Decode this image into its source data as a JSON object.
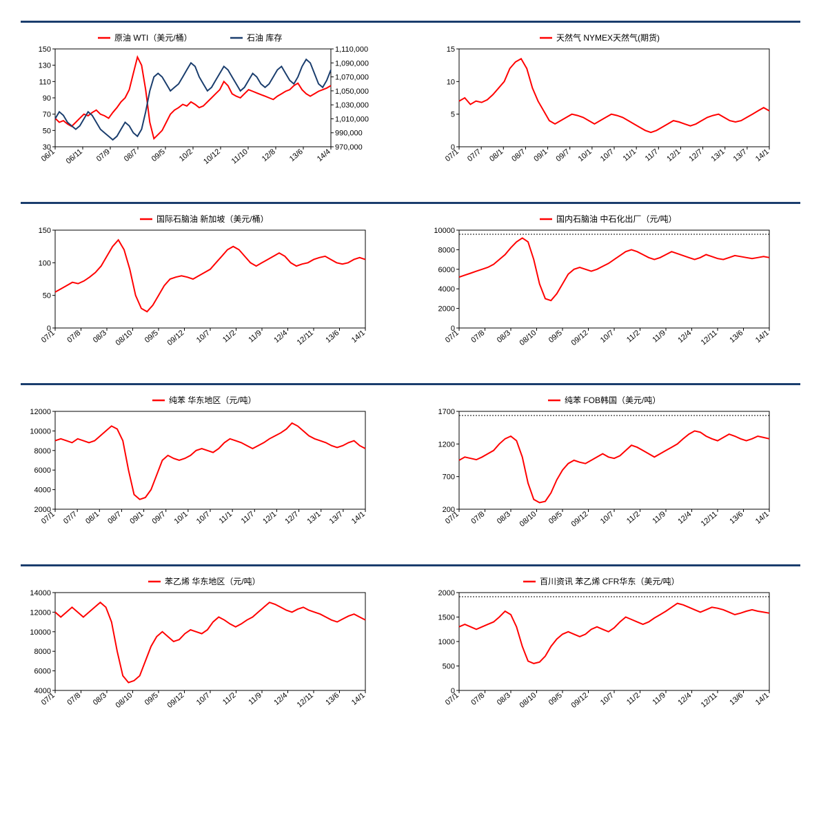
{
  "colors": {
    "series_red": "#ff0000",
    "series_blue": "#1a3d6d",
    "axis": "#000000",
    "divider": "#1a3d6d",
    "dash": "#000000"
  },
  "fontsize": {
    "legend": 12,
    "axis": 11
  },
  "charts": [
    {
      "id": "c1",
      "legend": [
        {
          "label": "原油 WTI（美元/桶）",
          "color": "#ff0000"
        },
        {
          "label": "石油 库存",
          "color": "#1a3d6d"
        }
      ],
      "yleft": {
        "min": 30,
        "max": 150,
        "step": 20,
        "ticks": [
          30,
          50,
          70,
          90,
          110,
          130,
          150
        ]
      },
      "yright": {
        "min": 970000,
        "max": 1110000,
        "step": 20000,
        "ticks": [
          970000,
          990000,
          1010000,
          1030000,
          1050000,
          1070000,
          1090000,
          1110000
        ],
        "fmt": "comma"
      },
      "xlabels": [
        "06/1",
        "06/11",
        "07/9",
        "08/7",
        "09/5",
        "10/2",
        "10/12",
        "11/10",
        "12/8",
        "13/6",
        "14/4"
      ],
      "series": [
        {
          "color": "#ff0000",
          "axis": "left",
          "data": [
            65,
            60,
            62,
            58,
            55,
            60,
            65,
            70,
            68,
            72,
            75,
            70,
            68,
            65,
            72,
            78,
            85,
            90,
            100,
            120,
            140,
            130,
            100,
            60,
            40,
            45,
            50,
            60,
            70,
            75,
            78,
            82,
            80,
            85,
            82,
            78,
            80,
            85,
            90,
            95,
            100,
            110,
            105,
            95,
            92,
            90,
            95,
            100,
            98,
            96,
            94,
            92,
            90,
            88,
            92,
            95,
            98,
            100,
            105,
            108,
            100,
            95,
            92,
            95,
            98,
            100,
            102,
            105
          ]
        },
        {
          "color": "#1a3d6d",
          "axis": "right",
          "data": [
            1010000,
            1020000,
            1015000,
            1005000,
            1000000,
            995000,
            1000000,
            1010000,
            1020000,
            1015000,
            1005000,
            995000,
            990000,
            985000,
            980000,
            985000,
            995000,
            1005000,
            1000000,
            990000,
            985000,
            995000,
            1020000,
            1050000,
            1070000,
            1075000,
            1070000,
            1060000,
            1050000,
            1055000,
            1060000,
            1070000,
            1080000,
            1090000,
            1085000,
            1070000,
            1060000,
            1050000,
            1055000,
            1065000,
            1075000,
            1085000,
            1080000,
            1070000,
            1060000,
            1050000,
            1055000,
            1065000,
            1075000,
            1070000,
            1060000,
            1055000,
            1060000,
            1070000,
            1080000,
            1085000,
            1075000,
            1065000,
            1060000,
            1070000,
            1085000,
            1095000,
            1090000,
            1075000,
            1060000,
            1055000,
            1065000,
            1080000
          ]
        }
      ]
    },
    {
      "id": "c2",
      "legend": [
        {
          "label": "天然气 NYMEX天然气(期货)",
          "color": "#ff0000"
        }
      ],
      "yleft": {
        "min": 0,
        "max": 15,
        "step": 5,
        "ticks": [
          0,
          5,
          10,
          15
        ]
      },
      "xlabels": [
        "07/1",
        "07/7",
        "08/1",
        "08/7",
        "09/1",
        "09/7",
        "10/1",
        "10/7",
        "11/1",
        "11/7",
        "12/1",
        "12/7",
        "13/1",
        "13/7",
        "14/1"
      ],
      "series": [
        {
          "color": "#ff0000",
          "axis": "left",
          "data": [
            7,
            7.5,
            6.5,
            7,
            6.8,
            7.2,
            8,
            9,
            10,
            12,
            13,
            13.5,
            12,
            9,
            7,
            5.5,
            4,
            3.5,
            4,
            4.5,
            5,
            4.8,
            4.5,
            4,
            3.5,
            4,
            4.5,
            5,
            4.8,
            4.5,
            4,
            3.5,
            3,
            2.5,
            2.2,
            2.5,
            3,
            3.5,
            4,
            3.8,
            3.5,
            3.2,
            3.5,
            4,
            4.5,
            4.8,
            5,
            4.5,
            4,
            3.8,
            4,
            4.5,
            5,
            5.5,
            6,
            5.5
          ]
        }
      ]
    },
    {
      "id": "c3",
      "legend": [
        {
          "label": "国际石脑油 新加坡（美元/桶）",
          "color": "#ff0000"
        }
      ],
      "yleft": {
        "min": 0,
        "max": 150,
        "step": 50,
        "ticks": [
          0,
          50,
          100,
          150
        ]
      },
      "xlabels": [
        "07/1",
        "07/8",
        "08/3",
        "08/10",
        "09/5",
        "09/12",
        "10/7",
        "11/2",
        "11/9",
        "12/4",
        "12/11",
        "13/6",
        "14/1"
      ],
      "series": [
        {
          "color": "#ff0000",
          "axis": "left",
          "data": [
            55,
            60,
            65,
            70,
            68,
            72,
            78,
            85,
            95,
            110,
            125,
            135,
            120,
            90,
            50,
            30,
            25,
            35,
            50,
            65,
            75,
            78,
            80,
            78,
            75,
            80,
            85,
            90,
            100,
            110,
            120,
            125,
            120,
            110,
            100,
            95,
            100,
            105,
            110,
            115,
            110,
            100,
            95,
            98,
            100,
            105,
            108,
            110,
            105,
            100,
            98,
            100,
            105,
            108,
            105
          ]
        }
      ]
    },
    {
      "id": "c4",
      "legend": [
        {
          "label": "国内石脑油 中石化出厂（元/吨）",
          "color": "#ff0000"
        }
      ],
      "yleft": {
        "min": 0,
        "max": 10000,
        "step": 2000,
        "ticks": [
          0,
          2000,
          4000,
          6000,
          8000,
          10000
        ]
      },
      "xlabels": [
        "07/1",
        "07/8",
        "08/3",
        "08/10",
        "09/5",
        "09/12",
        "10/7",
        "11/2",
        "11/9",
        "12/4",
        "12/11",
        "13/6",
        "14/1"
      ],
      "series": [
        {
          "color": "#ff0000",
          "axis": "left",
          "data": [
            5200,
            5400,
            5600,
            5800,
            6000,
            6200,
            6500,
            7000,
            7500,
            8200,
            8800,
            9200,
            8800,
            7000,
            4500,
            3000,
            2800,
            3500,
            4500,
            5500,
            6000,
            6200,
            6000,
            5800,
            6000,
            6300,
            6600,
            7000,
            7400,
            7800,
            8000,
            7800,
            7500,
            7200,
            7000,
            7200,
            7500,
            7800,
            7600,
            7400,
            7200,
            7000,
            7200,
            7500,
            7300,
            7100,
            7000,
            7200,
            7400,
            7300,
            7200,
            7100,
            7200,
            7300,
            7200
          ]
        }
      ],
      "dashed_top": true
    },
    {
      "id": "c5",
      "legend": [
        {
          "label": "纯苯 华东地区（元/吨）",
          "color": "#ff0000"
        }
      ],
      "yleft": {
        "min": 2000,
        "max": 12000,
        "step": 2000,
        "ticks": [
          2000,
          4000,
          6000,
          8000,
          10000,
          12000
        ]
      },
      "xlabels": [
        "07/1",
        "07/7",
        "08/1",
        "08/7",
        "09/1",
        "09/7",
        "10/1",
        "10/7",
        "11/1",
        "11/7",
        "12/1",
        "12/7",
        "13/1",
        "13/7",
        "14/1"
      ],
      "series": [
        {
          "color": "#ff0000",
          "axis": "left",
          "data": [
            9000,
            9200,
            9000,
            8800,
            9200,
            9000,
            8800,
            9000,
            9500,
            10000,
            10500,
            10200,
            9000,
            6000,
            3500,
            3000,
            3200,
            4000,
            5500,
            7000,
            7500,
            7200,
            7000,
            7200,
            7500,
            8000,
            8200,
            8000,
            7800,
            8200,
            8800,
            9200,
            9000,
            8800,
            8500,
            8200,
            8500,
            8800,
            9200,
            9500,
            9800,
            10200,
            10800,
            10500,
            10000,
            9500,
            9200,
            9000,
            8800,
            8500,
            8300,
            8500,
            8800,
            9000,
            8500,
            8200
          ]
        }
      ]
    },
    {
      "id": "c6",
      "legend": [
        {
          "label": "纯苯 FOB韩国（美元/吨）",
          "color": "#ff0000"
        }
      ],
      "yleft": {
        "min": 200,
        "max": 1700,
        "step": 500,
        "ticks": [
          200,
          700,
          1200,
          1700
        ]
      },
      "xlabels": [
        "07/1",
        "07/8",
        "08/3",
        "08/10",
        "09/5",
        "09/12",
        "10/7",
        "11/2",
        "11/9",
        "12/4",
        "12/11",
        "13/6",
        "14/1"
      ],
      "series": [
        {
          "color": "#ff0000",
          "axis": "left",
          "data": [
            950,
            1000,
            980,
            960,
            1000,
            1050,
            1100,
            1200,
            1280,
            1320,
            1250,
            1000,
            600,
            350,
            300,
            320,
            450,
            650,
            800,
            900,
            950,
            920,
            900,
            950,
            1000,
            1050,
            1000,
            980,
            1020,
            1100,
            1180,
            1150,
            1100,
            1050,
            1000,
            1050,
            1100,
            1150,
            1200,
            1280,
            1350,
            1400,
            1380,
            1320,
            1280,
            1250,
            1300,
            1350,
            1320,
            1280,
            1250,
            1280,
            1320,
            1300,
            1280
          ]
        }
      ],
      "dashed_top": true
    },
    {
      "id": "c7",
      "legend": [
        {
          "label": "苯乙烯 华东地区（元/吨）",
          "color": "#ff0000"
        }
      ],
      "yleft": {
        "min": 4000,
        "max": 14000,
        "step": 2000,
        "ticks": [
          4000,
          6000,
          8000,
          10000,
          12000,
          14000
        ]
      },
      "xlabels": [
        "07/1",
        "07/8",
        "08/3",
        "08/10",
        "09/5",
        "09/12",
        "10/7",
        "11/2",
        "11/9",
        "12/4",
        "12/11",
        "13/6",
        "14/1"
      ],
      "series": [
        {
          "color": "#ff0000",
          "axis": "left",
          "data": [
            12000,
            11500,
            12000,
            12500,
            12000,
            11500,
            12000,
            12500,
            13000,
            12500,
            11000,
            8000,
            5500,
            4800,
            5000,
            5500,
            7000,
            8500,
            9500,
            10000,
            9500,
            9000,
            9200,
            9800,
            10200,
            10000,
            9800,
            10200,
            11000,
            11500,
            11200,
            10800,
            10500,
            10800,
            11200,
            11500,
            12000,
            12500,
            13000,
            12800,
            12500,
            12200,
            12000,
            12300,
            12500,
            12200,
            12000,
            11800,
            11500,
            11200,
            11000,
            11300,
            11600,
            11800,
            11500,
            11200
          ]
        }
      ]
    },
    {
      "id": "c8",
      "legend": [
        {
          "label": "百川资讯 苯乙烯 CFR华东（美元/吨）",
          "color": "#ff0000"
        }
      ],
      "yleft": {
        "min": 0,
        "max": 2000,
        "step": 500,
        "ticks": [
          0,
          500,
          1000,
          1500,
          2000
        ]
      },
      "xlabels": [
        "07/1",
        "07/8",
        "08/3",
        "08/10",
        "09/5",
        "09/12",
        "10/7",
        "11/2",
        "11/9",
        "12/4",
        "12/11",
        "13/6",
        "14/1"
      ],
      "series": [
        {
          "color": "#ff0000",
          "axis": "left",
          "data": [
            1300,
            1350,
            1300,
            1250,
            1300,
            1350,
            1400,
            1500,
            1620,
            1550,
            1300,
            900,
            600,
            550,
            580,
            700,
            900,
            1050,
            1150,
            1200,
            1150,
            1100,
            1150,
            1250,
            1300,
            1250,
            1200,
            1280,
            1400,
            1500,
            1450,
            1400,
            1350,
            1400,
            1480,
            1550,
            1620,
            1700,
            1780,
            1750,
            1700,
            1650,
            1600,
            1650,
            1700,
            1680,
            1650,
            1600,
            1550,
            1580,
            1620,
            1650,
            1620,
            1600,
            1580
          ]
        }
      ],
      "dashed_top": true
    }
  ],
  "layout": [
    [
      "c1",
      "c2"
    ],
    [
      "c3",
      "c4"
    ],
    [
      "c5",
      "c6"
    ],
    [
      "c7",
      "c8"
    ]
  ]
}
